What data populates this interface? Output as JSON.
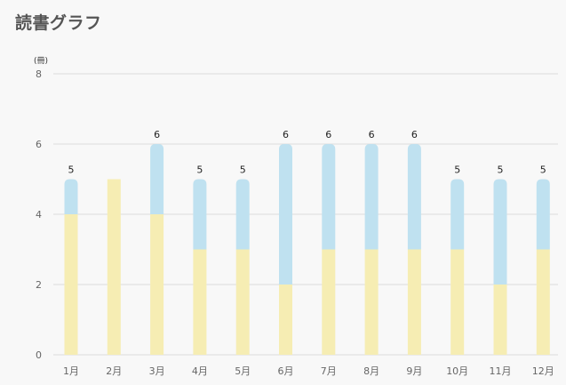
{
  "page": {
    "title": "読書グラフ"
  },
  "colors": {
    "lower": "#f6edb3",
    "upper": "#bfe1f0",
    "grid": "#dddddd",
    "axis_text": "#666666",
    "value_text": "#222222"
  },
  "chart_data": {
    "type": "bar",
    "stacked": true,
    "title": "",
    "ylabel": "(冊)",
    "ylim": [
      0,
      8
    ],
    "yticks": [
      0,
      2,
      4,
      6,
      8
    ],
    "grid": true,
    "categories": [
      "1月",
      "2月",
      "3月",
      "4月",
      "5月",
      "6月",
      "7月",
      "8月",
      "9月",
      "10月",
      "11月",
      "12月"
    ],
    "series": [
      {
        "values": [
          4,
          5,
          4,
          3,
          3,
          2,
          3,
          3,
          3,
          3,
          2,
          3
        ]
      },
      {
        "values": [
          1,
          0,
          2,
          2,
          2,
          4,
          3,
          3,
          3,
          2,
          3,
          2
        ]
      }
    ],
    "totals": [
      5,
      null,
      6,
      5,
      5,
      6,
      6,
      6,
      6,
      5,
      5,
      5
    ]
  }
}
